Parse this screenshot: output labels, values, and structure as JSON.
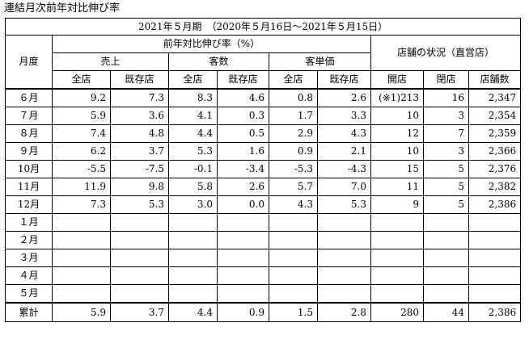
{
  "title": "連結月次前年対比伸び率",
  "period": "2021年５月期　（2020年５月16日～2021年５月15日）",
  "headers": {
    "month": "月度",
    "growth_group": "前年対比伸び率（%）",
    "sales": "売上",
    "customers": "客数",
    "unit_price": "客単価",
    "store_status": "店舗の状況（直営店）",
    "all_stores": "全店",
    "existing_stores": "既存店",
    "opened": "開店",
    "closed": "閉店",
    "store_count": "店舗数"
  },
  "rows": [
    {
      "month": "６月",
      "sales_all": "9.2",
      "sales_existing": "7.3",
      "cust_all": "8.3",
      "cust_existing": "4.6",
      "price_all": "0.8",
      "price_existing": "2.6",
      "opened": "(※1)213",
      "closed": "16",
      "count": "2,347"
    },
    {
      "month": "７月",
      "sales_all": "5.9",
      "sales_existing": "3.6",
      "cust_all": "4.1",
      "cust_existing": "0.3",
      "price_all": "1.7",
      "price_existing": "3.3",
      "opened": "10",
      "closed": "3",
      "count": "2,354"
    },
    {
      "month": "８月",
      "sales_all": "7.4",
      "sales_existing": "4.8",
      "cust_all": "4.4",
      "cust_existing": "0.5",
      "price_all": "2.9",
      "price_existing": "4.3",
      "opened": "12",
      "closed": "7",
      "count": "2,359"
    },
    {
      "month": "９月",
      "sales_all": "6.2",
      "sales_existing": "3.7",
      "cust_all": "5.3",
      "cust_existing": "1.6",
      "price_all": "0.9",
      "price_existing": "2.1",
      "opened": "10",
      "closed": "3",
      "count": "2,366"
    },
    {
      "month": "10月",
      "sales_all": "-5.5",
      "sales_existing": "-7.5",
      "cust_all": "-0.1",
      "cust_existing": "-3.4",
      "price_all": "-5.3",
      "price_existing": "-4.3",
      "opened": "15",
      "closed": "5",
      "count": "2,376"
    },
    {
      "month": "11月",
      "sales_all": "11.9",
      "sales_existing": "9.8",
      "cust_all": "5.8",
      "cust_existing": "2.6",
      "price_all": "5.7",
      "price_existing": "7.0",
      "opened": "11",
      "closed": "5",
      "count": "2,382"
    },
    {
      "month": "12月",
      "sales_all": "7.3",
      "sales_existing": "5.3",
      "cust_all": "3.0",
      "cust_existing": "0.0",
      "price_all": "4.3",
      "price_existing": "5.3",
      "opened": "9",
      "closed": "5",
      "count": "2,386"
    },
    {
      "month": "１月",
      "sales_all": "",
      "sales_existing": "",
      "cust_all": "",
      "cust_existing": "",
      "price_all": "",
      "price_existing": "",
      "opened": "",
      "closed": "",
      "count": ""
    },
    {
      "month": "２月",
      "sales_all": "",
      "sales_existing": "",
      "cust_all": "",
      "cust_existing": "",
      "price_all": "",
      "price_existing": "",
      "opened": "",
      "closed": "",
      "count": ""
    },
    {
      "month": "３月",
      "sales_all": "",
      "sales_existing": "",
      "cust_all": "",
      "cust_existing": "",
      "price_all": "",
      "price_existing": "",
      "opened": "",
      "closed": "",
      "count": ""
    },
    {
      "month": "４月",
      "sales_all": "",
      "sales_existing": "",
      "cust_all": "",
      "cust_existing": "",
      "price_all": "",
      "price_existing": "",
      "opened": "",
      "closed": "",
      "count": ""
    },
    {
      "month": "５月",
      "sales_all": "",
      "sales_existing": "",
      "cust_all": "",
      "cust_existing": "",
      "price_all": "",
      "price_existing": "",
      "opened": "",
      "closed": "",
      "count": ""
    }
  ],
  "total": {
    "month": "累計",
    "sales_all": "5.9",
    "sales_existing": "3.7",
    "cust_all": "4.4",
    "cust_existing": "0.9",
    "price_all": "1.5",
    "price_existing": "2.8",
    "opened": "280",
    "closed": "44",
    "count": "2,386"
  }
}
